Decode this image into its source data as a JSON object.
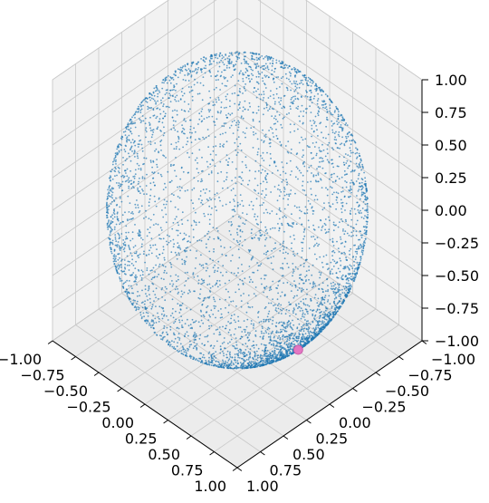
{
  "chart_data": {
    "type": "scatter",
    "projection": "3d",
    "title": "",
    "xlabel": "",
    "ylabel": "",
    "zlabel": "",
    "xlim": [
      -1.0,
      1.0
    ],
    "ylim": [
      -1.0,
      1.0
    ],
    "zlim": [
      -1.0,
      1.0
    ],
    "x_ticks": [
      "−1.00",
      "−0.75",
      "−0.50",
      "−0.25",
      "0.00",
      "0.25",
      "0.50",
      "0.75",
      "1.00"
    ],
    "y_ticks": [
      "−1.00",
      "−0.75",
      "−0.50",
      "−0.25",
      "0.00",
      "0.25",
      "0.50",
      "0.75",
      "1.00"
    ],
    "z_ticks": [
      "−1.00",
      "−0.75",
      "−0.50",
      "−0.25",
      "0.00",
      "0.25",
      "0.50",
      "0.75",
      "1.00"
    ],
    "grid": true,
    "legend": "none",
    "view": {
      "elev": 35,
      "azim": 45
    },
    "series": [
      {
        "distribution": "points on the unit sphere surface, denser near the highlighted point",
        "approx_count": 5000,
        "color": "#1f77b4",
        "marker_size": 1
      },
      {
        "x": [
          0.72
        ],
        "y": [
          0.06
        ],
        "z": [
          -0.69
        ],
        "color": "#e377c2",
        "marker_size": 6
      }
    ],
    "pane_color": "#f2f2f2",
    "grid_color": "#c8c8c8"
  }
}
